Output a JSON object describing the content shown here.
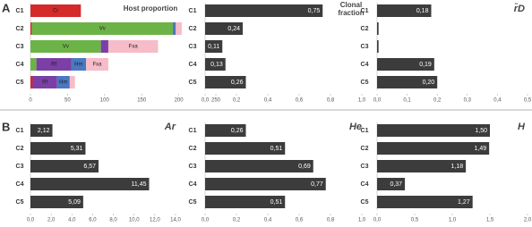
{
  "panel_labels": [
    "A",
    "B"
  ],
  "chart_data": [
    {
      "type": "stacked-bar",
      "title": "Host proportion",
      "categories": [
        "C1",
        "C2",
        "C3",
        "C4",
        "C5"
      ],
      "series": [
        {
          "name": "Cr",
          "color": "#d42a2a",
          "values": [
            68,
            2,
            0,
            0,
            3
          ]
        },
        {
          "name": "Vv",
          "color": "#6cb347",
          "values": [
            0,
            190,
            95,
            8,
            0
          ]
        },
        {
          "name": "Rf",
          "color": "#7b3fa6",
          "values": [
            0,
            0,
            10,
            47,
            33
          ]
        },
        {
          "name": "Hm",
          "color": "#4a78c2",
          "values": [
            0,
            4,
            0,
            20,
            17
          ]
        },
        {
          "name": "Fxa",
          "color": "#f6bcc8",
          "values": [
            0,
            8,
            67,
            30,
            7
          ]
        }
      ],
      "xlim": [
        0,
        250
      ],
      "xticks": [
        0,
        50,
        100,
        150,
        200,
        250
      ]
    },
    {
      "type": "bar",
      "title": "Clonal fraction",
      "color": "#3c3c3c",
      "categories": [
        "C1",
        "C2",
        "C3",
        "C4",
        "C5"
      ],
      "values": [
        0.75,
        0.24,
        0.11,
        0.13,
        0.26
      ],
      "value_labels": [
        "0,75",
        "0,24",
        "0,11",
        "0,13",
        "0,26"
      ],
      "xlim": [
        0,
        1
      ],
      "xticks": [
        {
          "value": 0,
          "label": "0,0"
        },
        {
          "value": 0.2,
          "label": "0,2"
        },
        {
          "value": 0.4,
          "label": "0,4"
        },
        {
          "value": 0.6,
          "label": "0,6"
        },
        {
          "value": 0.8,
          "label": "0,8"
        },
        {
          "value": 1,
          "label": "1,0"
        }
      ]
    },
    {
      "type": "bar",
      "title": "r̄D",
      "color": "#3c3c3c",
      "categories": [
        "C1",
        "C2",
        "C3",
        "C4",
        "C5"
      ],
      "values": [
        0.18,
        0.005,
        0.005,
        0.19,
        0.2
      ],
      "value_labels": [
        "0,18",
        null,
        null,
        "0,19",
        "0,20"
      ],
      "xlim": [
        0,
        0.5
      ],
      "xticks": [
        {
          "value": 0,
          "label": "0,0"
        },
        {
          "value": 0.1,
          "label": "0,1"
        },
        {
          "value": 0.2,
          "label": "0,2"
        },
        {
          "value": 0.3,
          "label": "0,3"
        },
        {
          "value": 0.4,
          "label": "0,4"
        },
        {
          "value": 0.5,
          "label": "0,5"
        }
      ]
    },
    {
      "type": "bar",
      "title": "Ar",
      "color": "#3c3c3c",
      "categories": [
        "C1",
        "C2",
        "C3",
        "C4",
        "C5"
      ],
      "values": [
        2.12,
        5.31,
        6.57,
        11.45,
        5.09
      ],
      "value_labels": [
        "2,12",
        "5,31",
        "6,57",
        "11,45",
        "5,09"
      ],
      "xlim": [
        0,
        14
      ],
      "xticks": [
        {
          "value": 0,
          "label": "0,0"
        },
        {
          "value": 2,
          "label": "2,0"
        },
        {
          "value": 4,
          "label": "4,0"
        },
        {
          "value": 6,
          "label": "6,0"
        },
        {
          "value": 8,
          "label": "8,0"
        },
        {
          "value": 10,
          "label": "10,0"
        },
        {
          "value": 12,
          "label": "12,0"
        },
        {
          "value": 14,
          "label": "14,0"
        }
      ]
    },
    {
      "type": "bar",
      "title": "He",
      "color": "#3c3c3c",
      "categories": [
        "C1",
        "C2",
        "C3",
        "C4",
        "C5"
      ],
      "values": [
        0.26,
        0.51,
        0.69,
        0.77,
        0.51
      ],
      "value_labels": [
        "0,26",
        "0,51",
        "0,69",
        "0,77",
        "0,51"
      ],
      "xlim": [
        0,
        1
      ],
      "xticks": [
        {
          "value": 0,
          "label": "0,0"
        },
        {
          "value": 0.2,
          "label": "0,2"
        },
        {
          "value": 0.4,
          "label": "0,4"
        },
        {
          "value": 0.6,
          "label": "0,6"
        },
        {
          "value": 0.8,
          "label": "0,8"
        },
        {
          "value": 1,
          "label": "1,0"
        }
      ]
    },
    {
      "type": "bar",
      "title": "H",
      "color": "#3c3c3c",
      "categories": [
        "C1",
        "C2",
        "C3",
        "C4",
        "C5"
      ],
      "values": [
        1.5,
        1.49,
        1.18,
        0.37,
        1.27
      ],
      "value_labels": [
        "1,50",
        "1,49",
        "1,18",
        "0,37",
        "1,27"
      ],
      "xlim": [
        0,
        2
      ],
      "xticks": [
        {
          "value": 0,
          "label": "0,0"
        },
        {
          "value": 0.5,
          "label": "0,5"
        },
        {
          "value": 1,
          "label": "1,0"
        },
        {
          "value": 1.5,
          "label": "1,5"
        },
        {
          "value": 2,
          "label": "2,0"
        }
      ]
    }
  ]
}
